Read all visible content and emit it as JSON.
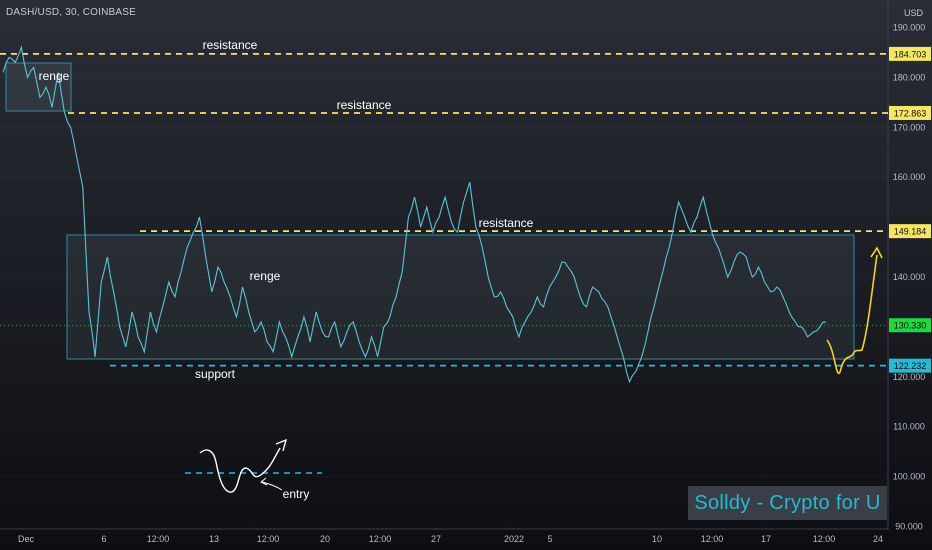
{
  "header": {
    "symbol_line": "DASH/USD, 30, COINBASE",
    "currency": "USD"
  },
  "price_axis": {
    "ticks": [
      "190.000",
      "180.000",
      "170.000",
      "160.000",
      "140.000",
      "130.000",
      "120.000",
      "110.000",
      "100.000",
      "90.000"
    ],
    "tick_values": [
      190,
      180,
      170,
      160,
      140,
      130,
      120,
      110,
      100,
      90
    ]
  },
  "price_tags": [
    {
      "label": "184.703",
      "value": 184.703,
      "bg": "#f5e663",
      "fg": "#111111"
    },
    {
      "label": "172.863",
      "value": 172.863,
      "bg": "#f5e663",
      "fg": "#111111"
    },
    {
      "label": "149.184",
      "value": 149.184,
      "bg": "#f5e663",
      "fg": "#111111"
    },
    {
      "label": "130.330",
      "value": 130.33,
      "bg": "#22d63f",
      "fg": "#111111"
    },
    {
      "label": "122.232",
      "value": 122.232,
      "bg": "#2ab8d6",
      "fg": "#111111"
    }
  ],
  "time_axis": {
    "ticks": [
      "Dec",
      "6",
      "12:00",
      "13",
      "12:00",
      "20",
      "12:00",
      "27",
      "2022",
      "5",
      "10",
      "12:00",
      "17",
      "12:00",
      "24"
    ]
  },
  "annotations": {
    "resistance_1": "resistance",
    "resistance_2": "resistance",
    "resistance_3": "resistance",
    "range_top": "renge",
    "range_main": "renge",
    "support": "support",
    "entry": "entry"
  },
  "watermark": "Solldy - Crypto for U",
  "colors": {
    "resistance_line": "#f5e663",
    "support_line": "#2ab8d6",
    "price_line": "#5ec3d6",
    "range_box": "#2a8fa6",
    "projection": "#f5d22a"
  },
  "chart_data": {
    "type": "line",
    "title": "DASH/USD, 30, COINBASE",
    "ylabel": "USD",
    "ylim": [
      89.5,
      195.5
    ],
    "levels": [
      {
        "label": "resistance",
        "value": 184.703
      },
      {
        "label": "resistance",
        "value": 172.863
      },
      {
        "label": "resistance",
        "value": 149.184
      },
      {
        "label": "support",
        "value": 122.232
      }
    ],
    "last_price": 130.33,
    "series": [
      {
        "values": [
          181,
          184,
          183,
          186,
          180,
          182,
          176,
          178,
          174,
          181,
          173,
          170,
          164,
          158,
          133,
          124,
          139,
          144,
          137,
          130,
          126,
          133,
          128,
          125,
          133,
          129,
          134,
          139,
          136,
          141,
          146,
          149,
          152,
          144,
          137,
          142,
          139,
          136,
          132,
          138,
          133,
          129,
          131,
          127,
          125,
          131,
          128,
          124,
          128,
          132,
          127,
          133,
          129,
          128,
          131,
          126,
          129,
          131,
          127,
          124,
          128,
          124,
          130,
          132,
          136,
          141,
          152,
          156,
          150,
          154,
          149,
          152,
          156,
          151,
          149,
          155,
          159,
          150,
          146,
          140,
          136,
          137,
          134,
          132,
          128,
          131,
          133,
          136,
          134,
          138,
          140,
          143,
          142,
          140,
          136,
          134,
          138,
          137,
          135,
          132,
          128,
          124,
          119,
          121,
          124,
          129,
          134,
          139,
          144,
          149,
          155,
          152,
          149,
          152,
          156,
          151,
          147,
          144,
          140,
          143,
          145,
          144,
          140,
          142,
          139,
          137,
          138,
          136,
          133,
          131,
          130,
          128,
          129,
          130,
          131
        ],
        "color": "#5ec3d6"
      }
    ]
  }
}
